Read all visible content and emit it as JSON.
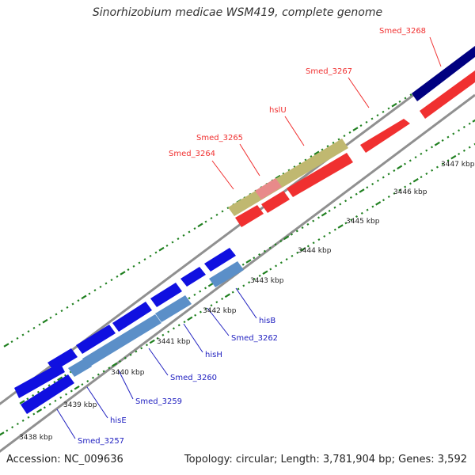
{
  "title": "Sinorhizobium medicae WSM419, complete genome",
  "footer": {
    "accession": "Accession: NC_009636",
    "topology": "Topology: circular; Length: 3,781,904 bp; Genes: 3,592"
  },
  "ticks": [
    "3438 kbp",
    "3439 kbp",
    "3440 kbp",
    "3441 kbp",
    "3442 kbp",
    "3443 kbp",
    "3444 kbp",
    "3445 kbp",
    "3446 kbp",
    "3447 kbp"
  ],
  "genes": [
    {
      "name": "Smed_3268",
      "color": "#f03030"
    },
    {
      "name": "Smed_3267",
      "color": "#f03030"
    },
    {
      "name": "hslU",
      "color": "#f03030"
    },
    {
      "name": "Smed_3265",
      "color": "#f03030"
    },
    {
      "name": "Smed_3264",
      "color": "#f03030"
    },
    {
      "name": "hisB",
      "color": "#2020c0"
    },
    {
      "name": "Smed_3262",
      "color": "#2020c0"
    },
    {
      "name": "hisH",
      "color": "#2020c0"
    },
    {
      "name": "Smed_3260",
      "color": "#2020c0"
    },
    {
      "name": "Smed_3259",
      "color": "#2020c0"
    },
    {
      "name": "hisE",
      "color": "#2020c0"
    },
    {
      "name": "Smed_3257",
      "color": "#2020c0"
    }
  ],
  "colors": {
    "forward_cds": "#ff0000",
    "reverse_cds": "#0000ff",
    "forward_gene": "#c8c070",
    "reverse_gene": "#5b8fc8",
    "navy_cds": "#000080",
    "tick": "#208020",
    "backbone": "#909090"
  }
}
